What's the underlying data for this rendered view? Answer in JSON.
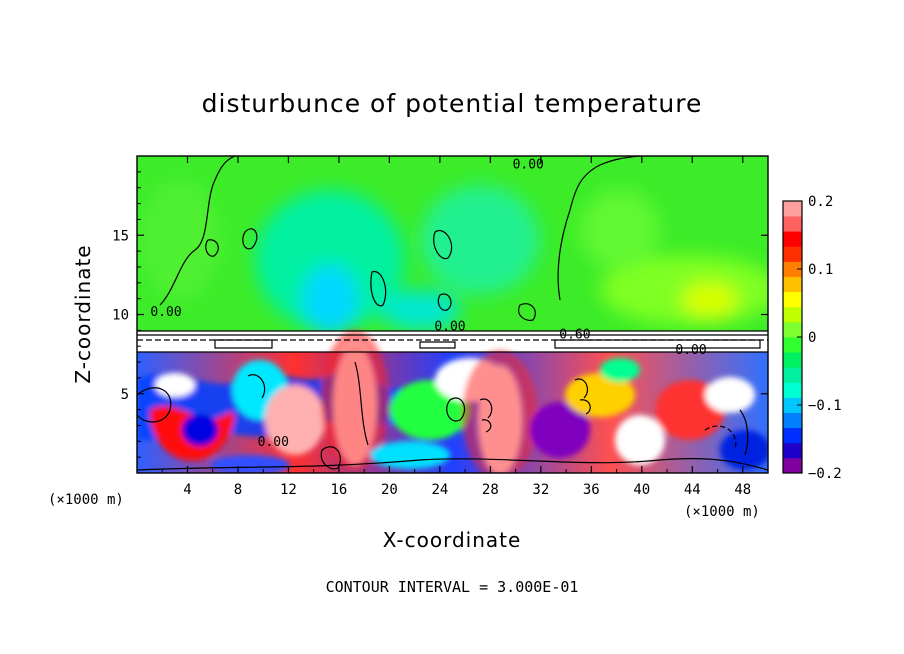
{
  "chart_data": {
    "type": "heatmap",
    "title": "disturbunce of potential temperature",
    "xlabel": "X-coordinate",
    "ylabel": "Z-coordinate",
    "x_unit": "(×1000 m)",
    "x_unit_right": "(×1000 m)",
    "xlim": [
      0,
      50
    ],
    "ylim": [
      0,
      20
    ],
    "x_ticks": [
      4,
      8,
      12,
      16,
      20,
      24,
      28,
      32,
      36,
      40,
      44,
      48
    ],
    "y_ticks": [
      5,
      10,
      15
    ],
    "colorbar": {
      "min": -0.2,
      "max": 0.2,
      "ticks": [
        -0.2,
        -0.1,
        0,
        0.1,
        0.2
      ],
      "tick_labels": [
        "−0.2",
        "−0.1",
        "0",
        "0.1",
        "0.2"
      ],
      "colors": [
        "#8000a0",
        "#1e00c8",
        "#0030ff",
        "#0080ff",
        "#00c8ff",
        "#00ffd0",
        "#00f0a0",
        "#00f060",
        "#30ff30",
        "#80ff30",
        "#c0ff00",
        "#ffff00",
        "#ffc000",
        "#ff8000",
        "#ff3000",
        "#ff0000",
        "#ff6060",
        "#ffa0a0"
      ]
    },
    "contour_labels": [
      {
        "text": "0.00",
        "x": 31,
        "y": 19.2
      },
      {
        "text": "0.00",
        "x": 2.3,
        "y": 9.9
      },
      {
        "text": "0.00",
        "x": 24.8,
        "y": 9.0
      },
      {
        "text": "0.60",
        "x": 34.7,
        "y": 8.5
      },
      {
        "text": "0.00",
        "x": 43.9,
        "y": 7.5
      },
      {
        "text": "0.00",
        "x": 10.8,
        "y": 1.7
      }
    ],
    "note": "CONTOUR INTERVAL = 3.000E-01"
  }
}
